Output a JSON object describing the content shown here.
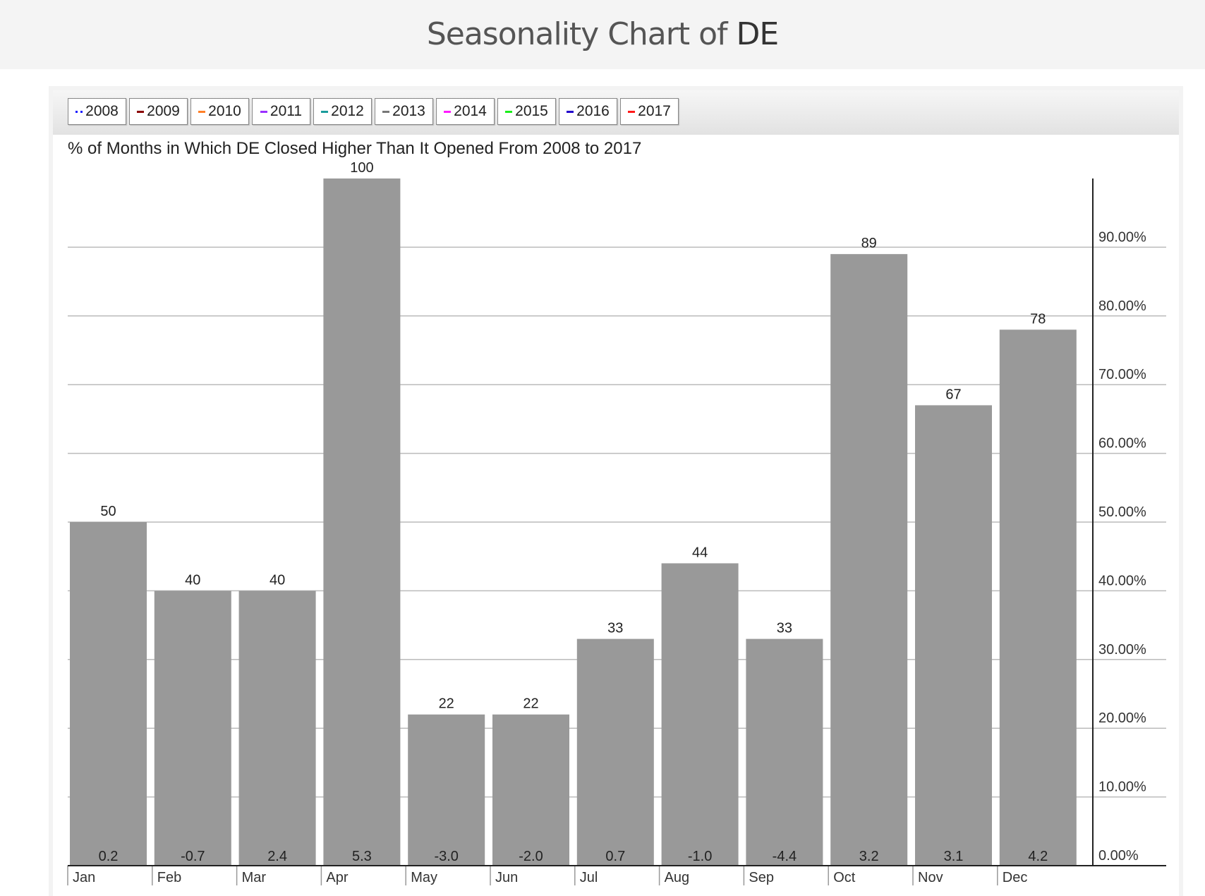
{
  "header": {
    "title_prefix": "Seasonality Chart of ",
    "symbol": "DE"
  },
  "legend": [
    {
      "label": "2008",
      "color": "#1a1aff",
      "style": "dots"
    },
    {
      "label": "2009",
      "color": "#8b0000"
    },
    {
      "label": "2010",
      "color": "#ff7f27"
    },
    {
      "label": "2011",
      "color": "#9b30ff"
    },
    {
      "label": "2012",
      "color": "#1a9c9c"
    },
    {
      "label": "2013",
      "color": "#777777"
    },
    {
      "label": "2014",
      "color": "#ff1aff"
    },
    {
      "label": "2015",
      "color": "#1aee1a"
    },
    {
      "label": "2016",
      "color": "#2200cc"
    },
    {
      "label": "2017",
      "color": "#ff1a1a"
    }
  ],
  "chart_data": {
    "type": "bar",
    "title": "% of Months in Which DE Closed Higher Than It Opened From 2008 to 2017",
    "categories": [
      "Jan",
      "Feb",
      "Mar",
      "Apr",
      "May",
      "Jun",
      "Jul",
      "Aug",
      "Sep",
      "Oct",
      "Nov",
      "Dec"
    ],
    "values": [
      50,
      40,
      40,
      100,
      22,
      22,
      33,
      44,
      33,
      89,
      67,
      78
    ],
    "avg_change_labels": [
      "0.2",
      "-0.7",
      "2.4",
      "5.3",
      "-3.0",
      "-2.0",
      "0.7",
      "-1.0",
      "-4.4",
      "3.2",
      "3.1",
      "4.2"
    ],
    "ylim": [
      0,
      100
    ],
    "yticks": [
      "0.00%",
      "10.00%",
      "20.00%",
      "30.00%",
      "40.00%",
      "50.00%",
      "60.00%",
      "70.00%",
      "80.00%",
      "90.00%"
    ],
    "grid": true,
    "bar_color": "#999999",
    "axis_position": "right"
  }
}
